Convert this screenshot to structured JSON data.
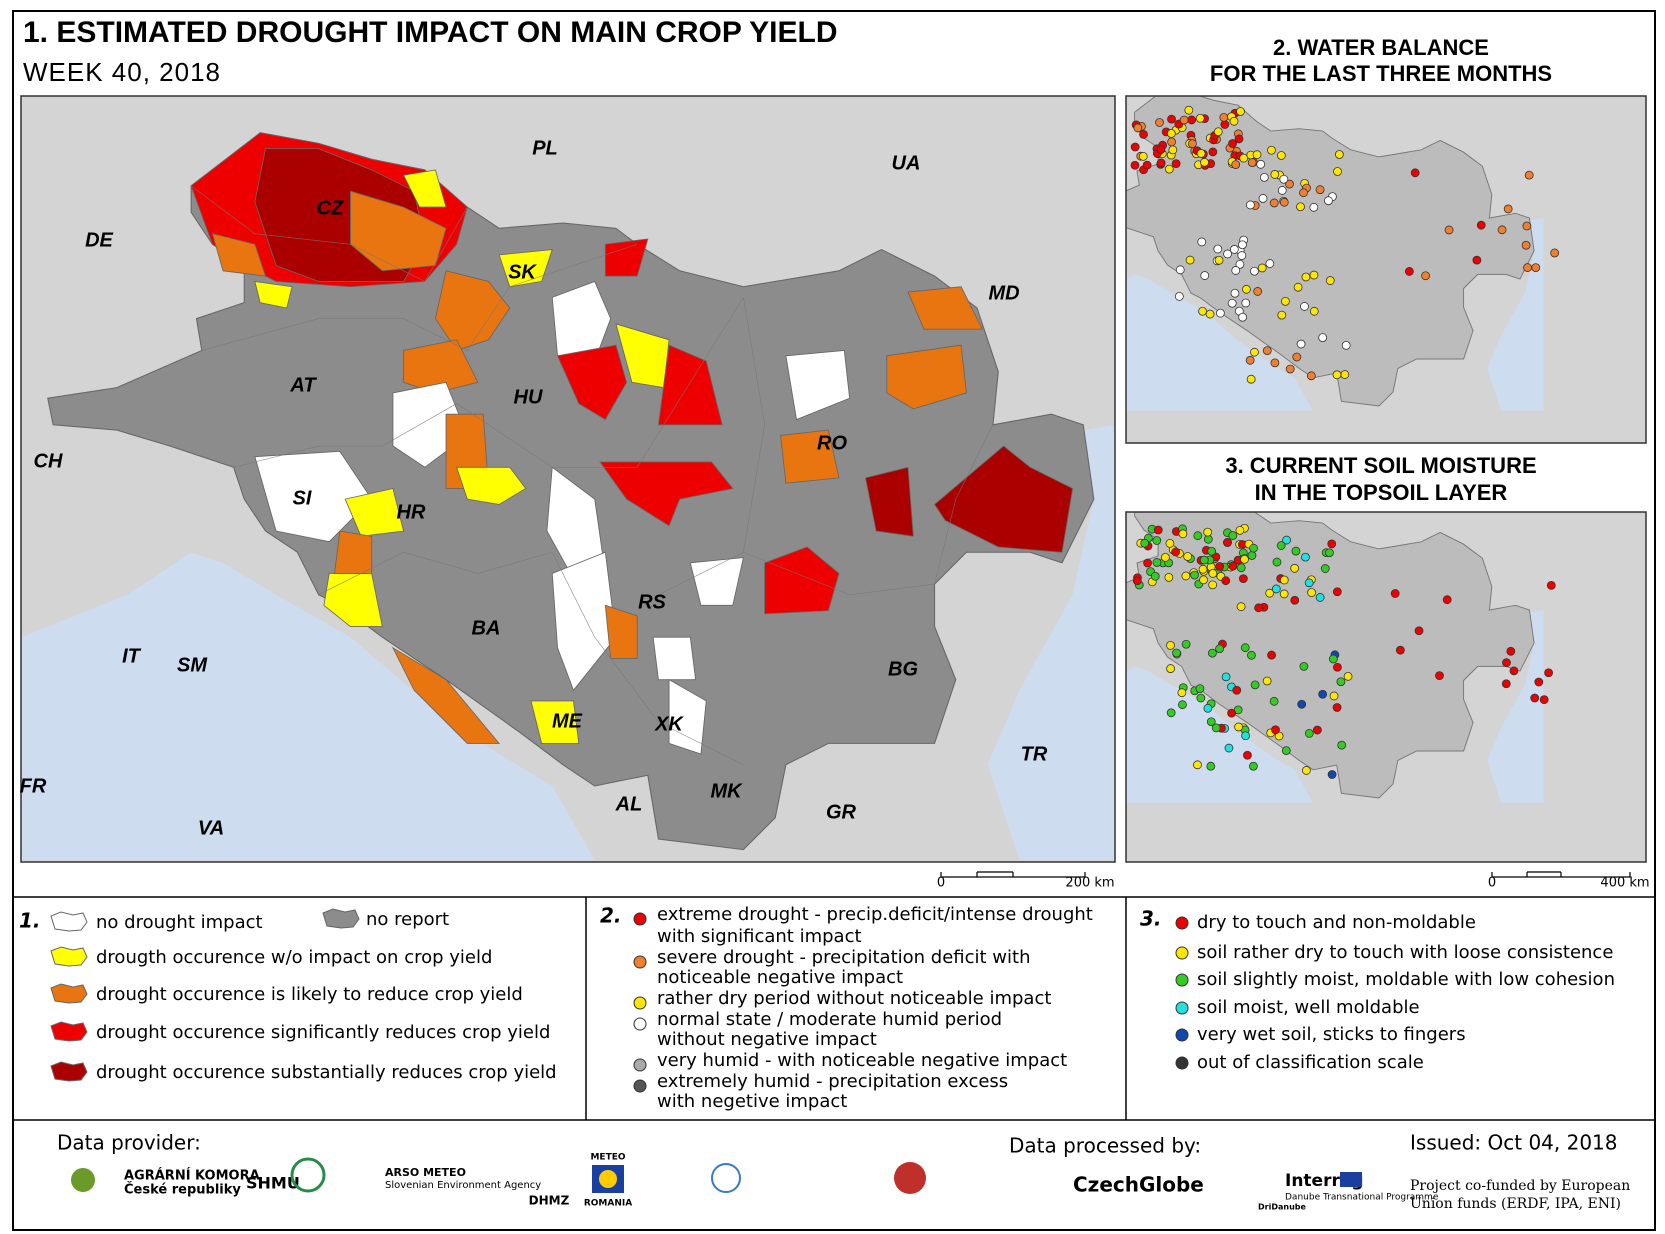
{
  "header": {
    "title": "1. ESTIMATED DROUGHT IMPACT ON MAIN CROP YIELD",
    "subtitle": "WEEK 40, 2018"
  },
  "main_map": {
    "country_labels": [
      "PL",
      "UA",
      "DE",
      "CZ",
      "SK",
      "MD",
      "AT",
      "HU",
      "CH",
      "RO",
      "SI",
      "HR",
      "RS",
      "BA",
      "IT",
      "SM",
      "BG",
      "ME",
      "XK",
      "TR",
      "MK",
      "FR",
      "AL",
      "GR",
      "VA"
    ],
    "scale": [
      "0",
      "200 km"
    ]
  },
  "water_balance_map": {
    "title": [
      "2. WATER BALANCE",
      "FOR THE LAST THREE MONTHS"
    ]
  },
  "soil_moisture_map": {
    "title": [
      "3. CURRENT SOIL MOISTURE",
      "IN THE TOPSOIL LAYER"
    ],
    "scale": [
      "0",
      "400 km"
    ]
  },
  "legend": {
    "section_1": {
      "number": "1.",
      "items": [
        "no drought impact",
        "no report",
        "drougth occurence w/o impact on crop yield",
        "drought occurence is likely to reduce crop yield",
        "drought occurence significantly reduces crop yield",
        "drought occurence substantially reduces crop yield"
      ]
    },
    "section_2": {
      "number": "2.",
      "items": [
        [
          "extreme drought - precip.deficit/intense drought",
          "with significant impact"
        ],
        [
          "severe drought - precipitation deficit with",
          "noticeable negative impact"
        ],
        [
          "rather dry period without noticeable impact"
        ],
        [
          "normal state / moderate humid period",
          "without negative impact"
        ],
        [
          "very humid - with noticeable negative impact"
        ],
        [
          "extremely humid - precipitation excess",
          "with negetive impact"
        ]
      ]
    },
    "section_3": {
      "number": "3.",
      "items": [
        "dry to touch and non-moldable",
        "soil rather dry to touch with loose consistence",
        "soil slightly moist, moldable with low cohesion",
        "soil moist, well moldable",
        "very wet soil, sticks to fingers",
        "out of classification scale"
      ]
    }
  },
  "footer": {
    "data_provider": "Data provider:",
    "data_processed_by": "Data processed by:",
    "issued": "Issued: Oct 04, 2018",
    "funding": [
      "Project co-funded by European",
      "Union funds (ERDF, IPA, ENI)"
    ],
    "logos": [
      "AGRÁRNÍ KOMORA",
      "České republiky",
      "SHMU",
      "ARSO METEO",
      "Slovenian Environment Agency",
      "DHMZ",
      "METEO",
      "ROMANIA",
      "CzechGlobe",
      "Interreg",
      "Danube Transnational Programme",
      "DriDanube"
    ]
  }
}
